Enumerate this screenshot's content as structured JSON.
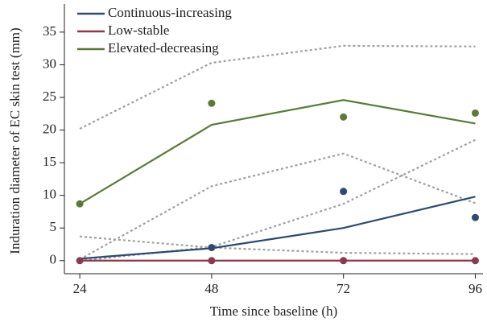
{
  "chart_data": {
    "type": "line",
    "x_label": "Time since baseline (h)",
    "y_label": "Induration diameter of EC skin test (mm)",
    "x": [
      24,
      48,
      72,
      96
    ],
    "xlim": [
      21.2,
      97.4
    ],
    "xticks": [
      24,
      48,
      72,
      96
    ],
    "ylim": [
      -2,
      39.3
    ],
    "yticks": [
      0,
      5,
      10,
      15,
      20,
      25,
      30,
      35
    ],
    "legend": "top-left",
    "series": [
      {
        "name": "Continuous-increasing",
        "color": "#2e4a6e",
        "values": [
          0.3,
          1.9,
          5.0,
          9.8
        ],
        "points": [
          null,
          2.0,
          10.6,
          6.6
        ]
      },
      {
        "name": "Low-stable",
        "color": "#8b3a4e",
        "values": [
          0,
          0,
          0,
          0
        ],
        "points": [
          0,
          0,
          0,
          0
        ]
      },
      {
        "name": "Elevated-decreasing",
        "color": "#5b7a3a",
        "values": [
          8.7,
          20.8,
          24.6,
          21.0
        ],
        "points": [
          8.7,
          24.1,
          22.0,
          22.6
        ]
      }
    ],
    "bands_color": "#a0a0a0",
    "bands": [
      {
        "values": [
          20.2,
          30.3,
          32.9,
          32.8
        ]
      },
      {
        "values": [
          0.2,
          11.4,
          16.4,
          8.8
        ]
      },
      {
        "values": [
          0.0,
          2.1,
          8.7,
          18.5
        ]
      },
      {
        "values": [
          3.7,
          2.0,
          1.2,
          1.0
        ]
      }
    ]
  }
}
